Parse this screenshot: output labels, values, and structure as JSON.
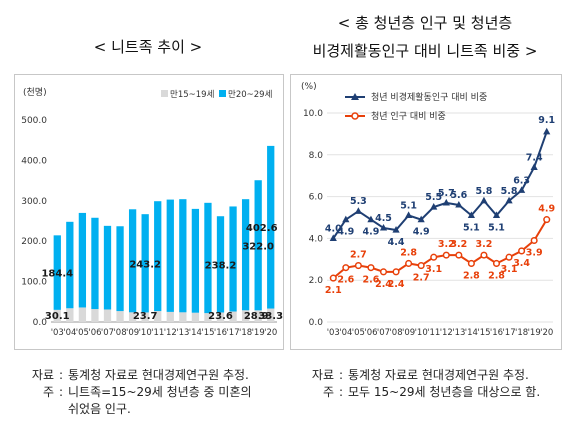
{
  "left_title": "< 니트족 추이 >",
  "right_title_line1": "< 총 청년층 인구 및 청년층",
  "right_title_line2": "비경제활동인구 대비 니트족 비중 >",
  "left_notes": [
    {
      "label": "자료",
      "text": "통계청 자료로 현대경제연구원 추정."
    },
    {
      "label": "주",
      "text": "니트족=15~29세 청년층 중 미혼의"
    },
    {
      "label": "",
      "text": "쉬었음 인구."
    }
  ],
  "right_notes": [
    {
      "label": "자료",
      "text": "통계청 자료로 현대경제연구원 추정."
    },
    {
      "label": "주",
      "text": "모두 15~29세 청년층을 대상으로 함."
    }
  ],
  "chart_data": [
    {
      "type": "bar",
      "stacked": true,
      "title": "",
      "ylabel": "(천명)",
      "ylim": [
        0,
        500
      ],
      "yticks": [
        "0.0",
        "100.0",
        "200.0",
        "300.0",
        "400.0",
        "500.0"
      ],
      "categories": [
        "'03",
        "'04",
        "'05",
        "'06",
        "'07",
        "'08",
        "'09",
        "'10",
        "'11",
        "'12",
        "'13",
        "'14",
        "'15",
        "'16",
        "'17",
        "'18",
        "'19",
        "'20"
      ],
      "legend_position": "top-right",
      "series": [
        {
          "name": "만15~19세",
          "color": "#d9d9d9",
          "values": [
            30.1,
            34,
            36,
            32,
            31,
            27,
            24,
            23.7,
            27,
            25,
            24,
            23,
            22,
            23.6,
            26,
            29,
            28.9,
            33.3
          ]
        },
        {
          "name": "만20~29세",
          "color": "#00b0f0",
          "values": [
            184.4,
            214,
            234,
            226,
            207,
            210,
            255,
            243.2,
            272,
            278,
            280,
            257,
            273,
            238.2,
            260,
            275,
            322.0,
            402.6
          ]
        }
      ],
      "data_labels": [
        {
          "text": "184.4",
          "index": 0,
          "value": 184.4
        },
        {
          "text": "30.1",
          "index": 0,
          "value": 30.1
        },
        {
          "text": "243.2",
          "index": 7,
          "value": 243.2
        },
        {
          "text": "23.7",
          "index": 7,
          "value": 23.7
        },
        {
          "text": "238.2",
          "index": 13,
          "value": 238.2
        },
        {
          "text": "23.6",
          "index": 13,
          "value": 23.6
        },
        {
          "text": "322.0",
          "index": 16,
          "value": 322.0
        },
        {
          "text": "28.9",
          "index": 16,
          "value": 28.9
        },
        {
          "text": "402.6",
          "index": 17,
          "value": 402.6
        },
        {
          "text": "33.3",
          "index": 17,
          "value": 33.3
        }
      ]
    },
    {
      "type": "line",
      "title": "",
      "ylabel": "(%)",
      "ylim": [
        0,
        10
      ],
      "yticks": [
        "0.0",
        "2.0",
        "4.0",
        "6.0",
        "8.0",
        "10.0"
      ],
      "categories": [
        "'03",
        "'04",
        "'05",
        "'06",
        "'07",
        "'08",
        "'09",
        "'10",
        "'11",
        "'12",
        "'13",
        "'14",
        "'15",
        "'16",
        "'17",
        "'18",
        "'19",
        "'20"
      ],
      "legend_position": "top-left",
      "series": [
        {
          "name": "청년 비경제활동인구 대비 비중",
          "color": "#1f3f73",
          "marker": "triangle",
          "values": [
            4.0,
            4.9,
            5.3,
            4.9,
            4.5,
            4.4,
            5.1,
            4.9,
            5.5,
            5.7,
            5.6,
            5.1,
            5.8,
            5.1,
            5.8,
            6.3,
            7.4,
            9.1
          ],
          "labels": [
            "4.0",
            "4.9",
            "5.3",
            "4.9",
            "4.5",
            "4.4",
            "5.1",
            "4.9",
            "5.5",
            "5.7",
            "5.6",
            "5.1",
            "5.8",
            "5.1",
            "5.8",
            "6.3",
            "7.4",
            "9.1"
          ]
        },
        {
          "name": "청년 인구 대비 비중",
          "color": "#e8400a",
          "marker": "circle",
          "values": [
            2.1,
            2.6,
            2.7,
            2.6,
            2.4,
            2.4,
            2.8,
            2.7,
            3.1,
            3.2,
            3.2,
            2.8,
            3.2,
            2.8,
            3.1,
            3.4,
            3.9,
            4.9
          ],
          "labels": [
            "2.1",
            "2.6",
            "2.7",
            "2.6",
            "2.4",
            "2.4",
            "2.8",
            "2.7",
            "3.1",
            "3.2",
            "3.2",
            "2.8",
            "3.2",
            "2.8",
            "3.1",
            "3.4",
            "3.9",
            "4.9"
          ]
        }
      ]
    }
  ]
}
